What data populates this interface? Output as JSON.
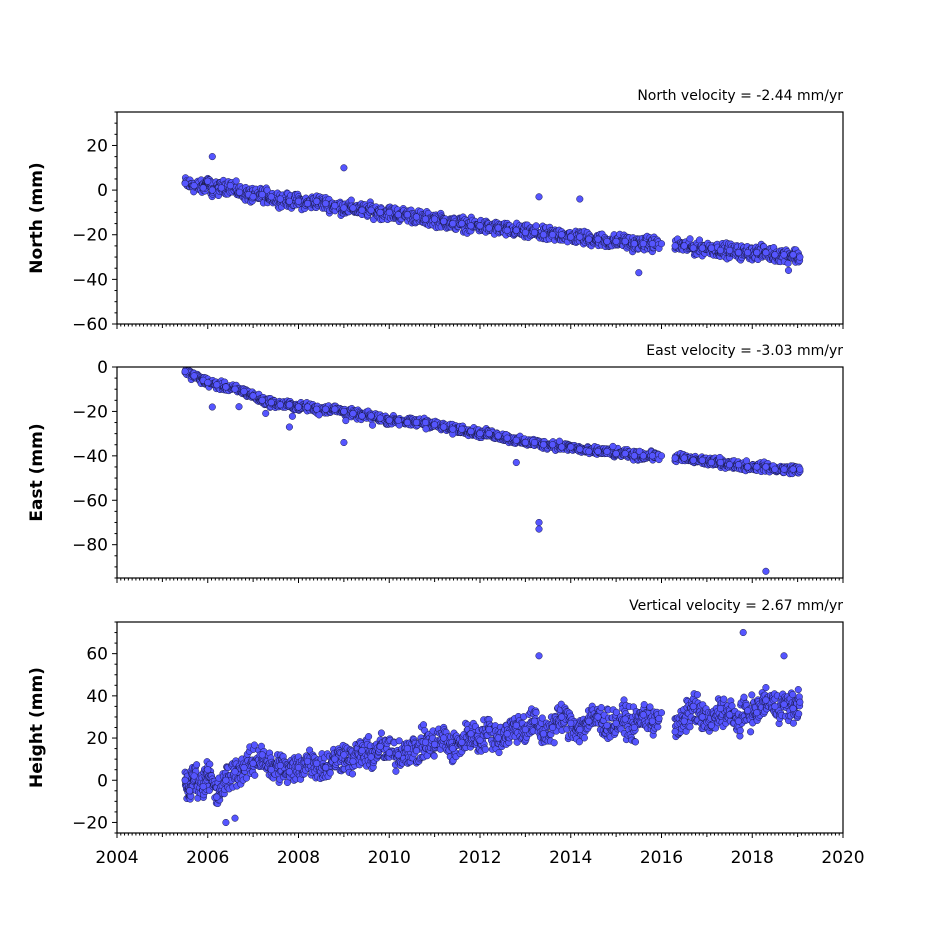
{
  "chart_data": [
    {
      "type": "scatter",
      "panel": "north",
      "ylabel": "North (mm)",
      "annotation": "North velocity = -2.44 mm/yr",
      "xlim": [
        2004,
        2020
      ],
      "ylim": [
        -60,
        35
      ],
      "yticks": [
        -60,
        -40,
        -20,
        0,
        20
      ],
      "ytick_labels": [
        "−60",
        "−40",
        "−20",
        "0",
        "20"
      ],
      "color": "#5555ff",
      "series": [
        {
          "x": [
            2005.5,
            2005.7,
            2005.9,
            2006.0,
            2006.1,
            2006.3,
            2006.5,
            2006.7,
            2006.9,
            2007.0,
            2007.2,
            2007.4,
            2007.6,
            2007.8,
            2008.0,
            2008.2,
            2008.4,
            2008.6,
            2008.8,
            2009.0,
            2009.2,
            2009.4,
            2009.6,
            2009.8,
            2010.0,
            2010.2,
            2010.4,
            2010.6,
            2010.8,
            2011.0,
            2011.2,
            2011.4,
            2011.6,
            2011.8,
            2012.0,
            2012.2,
            2012.4,
            2012.6,
            2012.8,
            2013.0,
            2013.2,
            2013.4,
            2013.6,
            2013.8,
            2014.0,
            2014.2,
            2014.4,
            2014.6,
            2014.8,
            2015.0,
            2015.2,
            2015.4,
            2015.6,
            2015.8,
            2016.0,
            2016.3,
            2016.5,
            2016.7,
            2016.9,
            2017.1,
            2017.3,
            2017.5,
            2017.7,
            2017.9,
            2018.1,
            2018.3,
            2018.5,
            2018.7,
            2018.9,
            2019.05,
            2006.1,
            2009.0,
            2013.3,
            2014.2,
            2015.5,
            2018.8
          ],
          "y": [
            3,
            2,
            1,
            4,
            0,
            1,
            2,
            -1,
            -2,
            -3,
            -2,
            -3,
            -4,
            -5,
            -5,
            -6,
            -5,
            -6,
            -7,
            -8,
            -8,
            -9,
            -9,
            -10,
            -10,
            -11,
            -11,
            -12,
            -13,
            -13,
            -14,
            -15,
            -15,
            -16,
            -16,
            -17,
            -17,
            -18,
            -18,
            -19,
            -19,
            -20,
            -20,
            -20,
            -21,
            -21,
            -22,
            -22,
            -23,
            -23,
            -23,
            -24,
            -24,
            -24,
            -24,
            -25,
            -25,
            -26,
            -26,
            -26,
            -27,
            -27,
            -28,
            -28,
            -28,
            -28,
            -29,
            -29,
            -29,
            -30,
            15,
            10,
            -3,
            -4,
            -37,
            -36
          ]
        }
      ]
    },
    {
      "type": "scatter",
      "panel": "east",
      "ylabel": "East (mm)",
      "annotation": "East velocity = -3.03 mm/yr",
      "xlim": [
        2004,
        2020
      ],
      "ylim": [
        -95,
        0
      ],
      "yticks": [
        -80,
        -60,
        -40,
        -20,
        0
      ],
      "ytick_labels": [
        "−80",
        "−60",
        "−40",
        "−20",
        "0"
      ],
      "color": "#5555ff",
      "series": [
        {
          "x": [
            2005.5,
            2005.7,
            2005.9,
            2006.0,
            2006.2,
            2006.4,
            2006.6,
            2006.8,
            2007.0,
            2007.2,
            2007.4,
            2007.6,
            2007.8,
            2008.0,
            2008.2,
            2008.4,
            2008.6,
            2008.8,
            2009.0,
            2009.2,
            2009.4,
            2009.6,
            2009.8,
            2010.0,
            2010.2,
            2010.4,
            2010.6,
            2010.8,
            2011.0,
            2011.2,
            2011.4,
            2011.6,
            2011.8,
            2012.0,
            2012.2,
            2012.4,
            2012.6,
            2012.8,
            2013.0,
            2013.2,
            2013.4,
            2013.6,
            2013.8,
            2014.0,
            2014.2,
            2014.4,
            2014.6,
            2014.8,
            2015.0,
            2015.2,
            2015.4,
            2015.6,
            2015.8,
            2016.0,
            2016.3,
            2016.5,
            2016.7,
            2016.9,
            2017.1,
            2017.3,
            2017.5,
            2017.7,
            2017.9,
            2018.1,
            2018.3,
            2018.5,
            2018.7,
            2018.9,
            2019.05,
            2006.1,
            2007.8,
            2009.0,
            2013.3,
            2013.3,
            2018.3,
            2012.8
          ],
          "y": [
            -2,
            -4,
            -6,
            -7,
            -8,
            -9,
            -10,
            -11,
            -13,
            -15,
            -16,
            -17,
            -17,
            -18,
            -18,
            -19,
            -19,
            -19,
            -20,
            -21,
            -22,
            -22,
            -23,
            -24,
            -24,
            -25,
            -25,
            -25,
            -26,
            -27,
            -28,
            -28,
            -29,
            -30,
            -30,
            -31,
            -32,
            -33,
            -34,
            -34,
            -35,
            -35,
            -36,
            -36,
            -37,
            -38,
            -38,
            -38,
            -39,
            -39,
            -40,
            -40,
            -40,
            -40,
            -41,
            -41,
            -42,
            -42,
            -43,
            -43,
            -44,
            -44,
            -45,
            -45,
            -45,
            -46,
            -46,
            -46,
            -46,
            -18,
            -27,
            -34,
            -70,
            -73,
            -92,
            -43
          ]
        }
      ]
    },
    {
      "type": "scatter",
      "panel": "height",
      "ylabel": "Height (mm)",
      "annotation": "Vertical velocity = 2.67 mm/yr",
      "xlim": [
        2004,
        2020
      ],
      "ylim": [
        -25,
        75
      ],
      "yticks": [
        -20,
        0,
        20,
        40,
        60
      ],
      "ytick_labels": [
        "−20",
        "0",
        "20",
        "40",
        "60"
      ],
      "xticks": [
        2004,
        2006,
        2008,
        2010,
        2012,
        2014,
        2016,
        2018,
        2020
      ],
      "xtick_labels": [
        "2004",
        "2006",
        "2008",
        "2010",
        "2012",
        "2014",
        "2016",
        "2018",
        "2020"
      ],
      "color": "#5555ff",
      "series": [
        {
          "x": [
            2005.5,
            2005.6,
            2005.7,
            2005.9,
            2006.0,
            2006.2,
            2006.4,
            2006.6,
            2006.8,
            2007.0,
            2007.2,
            2007.4,
            2007.6,
            2007.8,
            2008.0,
            2008.2,
            2008.4,
            2008.6,
            2008.8,
            2009.0,
            2009.2,
            2009.4,
            2009.6,
            2009.8,
            2010.0,
            2010.2,
            2010.4,
            2010.6,
            2010.8,
            2011.0,
            2011.2,
            2011.4,
            2011.6,
            2011.8,
            2012.0,
            2012.2,
            2012.4,
            2012.6,
            2012.8,
            2013.0,
            2013.2,
            2013.4,
            2013.6,
            2013.8,
            2014.0,
            2014.2,
            2014.4,
            2014.6,
            2014.8,
            2015.0,
            2015.2,
            2015.4,
            2015.6,
            2015.8,
            2016.0,
            2016.3,
            2016.5,
            2016.7,
            2016.9,
            2017.1,
            2017.3,
            2017.5,
            2017.7,
            2017.9,
            2018.1,
            2018.3,
            2018.5,
            2018.7,
            2018.9,
            2019.05,
            2013.3,
            2017.8,
            2018.7,
            2006.4,
            2006.6
          ],
          "y": [
            0,
            -5,
            2,
            -3,
            5,
            -8,
            0,
            4,
            6,
            8,
            12,
            5,
            7,
            4,
            6,
            9,
            8,
            6,
            10,
            12,
            9,
            14,
            11,
            16,
            13,
            12,
            15,
            14,
            18,
            17,
            20,
            15,
            18,
            22,
            19,
            24,
            20,
            22,
            26,
            24,
            28,
            22,
            25,
            30,
            27,
            24,
            28,
            30,
            26,
            27,
            29,
            25,
            31,
            28,
            32,
            23,
            28,
            35,
            30,
            26,
            34,
            31,
            28,
            33,
            32,
            38,
            35,
            36,
            34,
            37,
            59,
            70,
            59,
            -20,
            -18
          ]
        }
      ]
    }
  ],
  "x_axis": {
    "xlim": [
      2004,
      2020
    ],
    "xticks": [
      2004,
      2006,
      2008,
      2010,
      2012,
      2014,
      2016,
      2018,
      2020
    ],
    "xtick_labels": [
      "2004",
      "2006",
      "2008",
      "2010",
      "2012",
      "2014",
      "2016",
      "2018",
      "2020"
    ]
  }
}
